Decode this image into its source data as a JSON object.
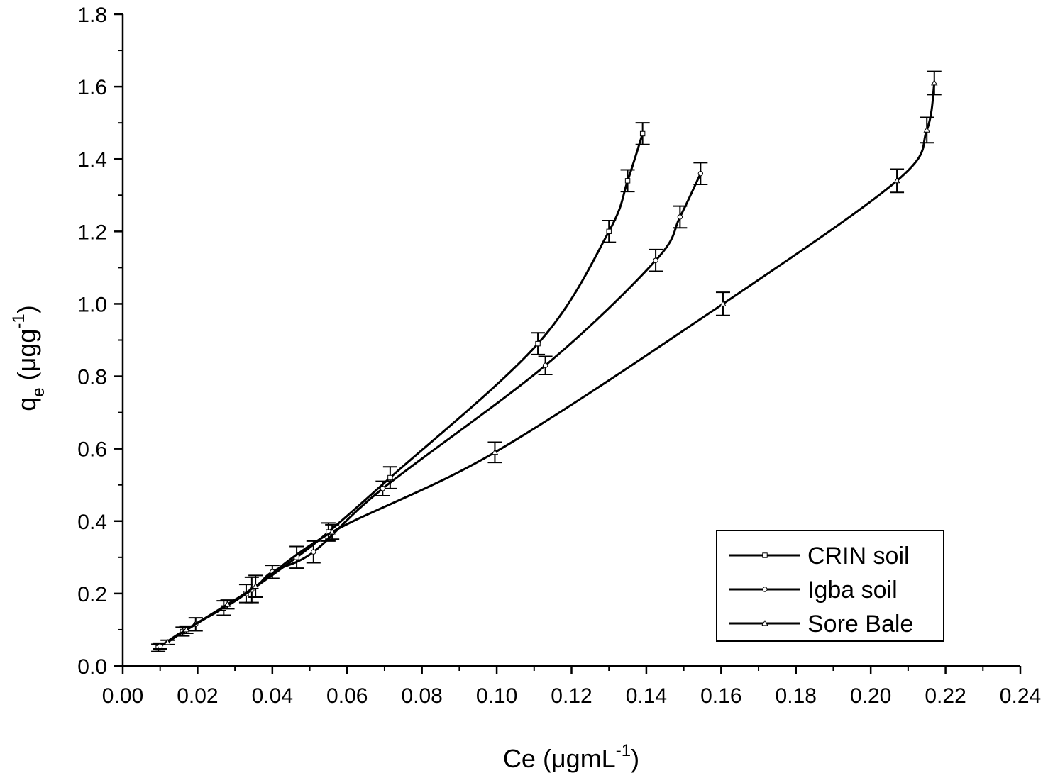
{
  "chart_data": {
    "type": "line",
    "xlabel": {
      "main": "Ce (μgmL",
      "sup": "-1",
      "tail": ")"
    },
    "ylabel": {
      "main": "q",
      "sub": "e",
      "mid": " (μgg",
      "sup": "-1",
      "tail": ")"
    },
    "xlim": [
      0.0,
      0.24
    ],
    "ylim": [
      0.0,
      1.8
    ],
    "xticks": [
      "0.00",
      "0.02",
      "0.04",
      "0.06",
      "0.08",
      "0.10",
      "0.12",
      "0.14",
      "0.16",
      "0.18",
      "0.20",
      "0.22",
      "0.24"
    ],
    "yticks": [
      "0.0",
      "0.2",
      "0.4",
      "0.6",
      "0.8",
      "1.0",
      "1.2",
      "1.4",
      "1.6",
      "1.8"
    ],
    "legend_position": "bottom-right",
    "series": [
      {
        "name": "CRIN soil",
        "marker": "square",
        "color": "#000000",
        "points": [
          {
            "x": 0.0095,
            "y": 0.05,
            "err": 0.01
          },
          {
            "x": 0.016,
            "y": 0.095,
            "err": 0.012
          },
          {
            "x": 0.027,
            "y": 0.16,
            "err": 0.02
          },
          {
            "x": 0.033,
            "y": 0.2,
            "err": 0.025
          },
          {
            "x": 0.0465,
            "y": 0.3,
            "err": 0.03
          },
          {
            "x": 0.055,
            "y": 0.37,
            "err": 0.025
          },
          {
            "x": 0.0715,
            "y": 0.52,
            "err": 0.03
          },
          {
            "x": 0.111,
            "y": 0.89,
            "err": 0.03
          },
          {
            "x": 0.13,
            "y": 1.2,
            "err": 0.03
          },
          {
            "x": 0.135,
            "y": 1.34,
            "err": 0.03
          },
          {
            "x": 0.139,
            "y": 1.47,
            "err": 0.03
          }
        ]
      },
      {
        "name": "Igba soil",
        "marker": "circle",
        "color": "#000000",
        "points": [
          {
            "x": 0.01,
            "y": 0.055,
            "err": 0.008
          },
          {
            "x": 0.0195,
            "y": 0.115,
            "err": 0.018
          },
          {
            "x": 0.0345,
            "y": 0.21,
            "err": 0.035
          },
          {
            "x": 0.04,
            "y": 0.26,
            "err": 0.018
          },
          {
            "x": 0.051,
            "y": 0.315,
            "err": 0.03
          },
          {
            "x": 0.0695,
            "y": 0.49,
            "err": 0.02
          },
          {
            "x": 0.113,
            "y": 0.83,
            "err": 0.025
          },
          {
            "x": 0.1425,
            "y": 1.12,
            "err": 0.03
          },
          {
            "x": 0.149,
            "y": 1.24,
            "err": 0.03
          },
          {
            "x": 0.1545,
            "y": 1.36,
            "err": 0.03
          }
        ]
      },
      {
        "name": "Sore Bale",
        "marker": "triangle",
        "color": "#000000",
        "points": [
          {
            "x": 0.012,
            "y": 0.065,
            "err": 0.006
          },
          {
            "x": 0.017,
            "y": 0.1,
            "err": 0.01
          },
          {
            "x": 0.028,
            "y": 0.17,
            "err": 0.012
          },
          {
            "x": 0.0355,
            "y": 0.22,
            "err": 0.03
          },
          {
            "x": 0.056,
            "y": 0.37,
            "err": 0.02
          },
          {
            "x": 0.0995,
            "y": 0.59,
            "err": 0.028
          },
          {
            "x": 0.1605,
            "y": 1.0,
            "err": 0.032
          },
          {
            "x": 0.207,
            "y": 1.34,
            "err": 0.032
          },
          {
            "x": 0.215,
            "y": 1.48,
            "err": 0.035
          },
          {
            "x": 0.217,
            "y": 1.61,
            "err": 0.032
          }
        ]
      }
    ]
  }
}
